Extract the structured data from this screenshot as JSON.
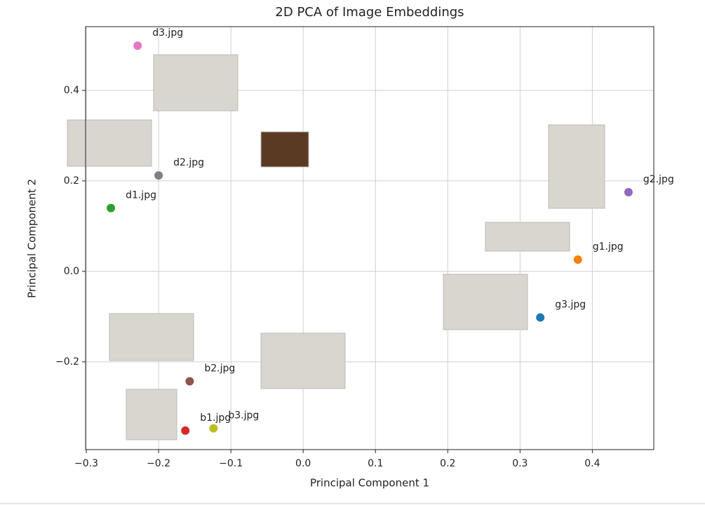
{
  "chart_data": {
    "type": "scatter",
    "title": "2D PCA of Image Embeddings",
    "x_label": "Principal Component 1",
    "y_label": "Principal Component 2",
    "xlim": [
      -0.301,
      0.485
    ],
    "ylim": [
      -0.394,
      0.541
    ],
    "xticks": [
      {
        "value": -0.3,
        "label": "−0.3"
      },
      {
        "value": -0.2,
        "label": "−0.2"
      },
      {
        "value": -0.1,
        "label": "−0.1"
      },
      {
        "value": 0,
        "label": "0.0"
      },
      0.1,
      0.2,
      0.3,
      0.4
    ],
    "yticks": [
      {
        "value": -0.2,
        "label": "−0.2"
      },
      {
        "value": 0,
        "label": "0.0"
      },
      0.2,
      0.4
    ],
    "grid": true,
    "series": [
      {
        "name": "g3.jpg",
        "color": "#1f77b4",
        "x": [
          0.328
        ],
        "values": [
          -0.102
        ]
      },
      {
        "name": "g1.jpg",
        "color": "#ff7f0e",
        "x": [
          0.38
        ],
        "values": [
          0.026
        ]
      },
      {
        "name": "d1.jpg",
        "color": "#2ca02c",
        "x": [
          -0.266
        ],
        "values": [
          0.14
        ]
      },
      {
        "name": "b1.jpg",
        "color": "#d62728",
        "x": [
          -0.163
        ],
        "values": [
          -0.352
        ]
      },
      {
        "name": "g2.jpg",
        "color": "#9467bd",
        "x": [
          0.45
        ],
        "values": [
          0.175
        ]
      },
      {
        "name": "b2.jpg",
        "color": "#8c564b",
        "x": [
          -0.157
        ],
        "values": [
          -0.243
        ]
      },
      {
        "name": "d3.jpg",
        "color": "#e377c2",
        "x": [
          -0.229
        ],
        "values": [
          0.499
        ]
      },
      {
        "name": "d2.jpg",
        "color": "#7f7f7f",
        "x": [
          -0.2
        ],
        "values": [
          0.212
        ]
      },
      {
        "name": "b3.jpg",
        "color": "#bcbd22",
        "x": [
          -0.124
        ],
        "values": [
          -0.347
        ]
      }
    ]
  }
}
